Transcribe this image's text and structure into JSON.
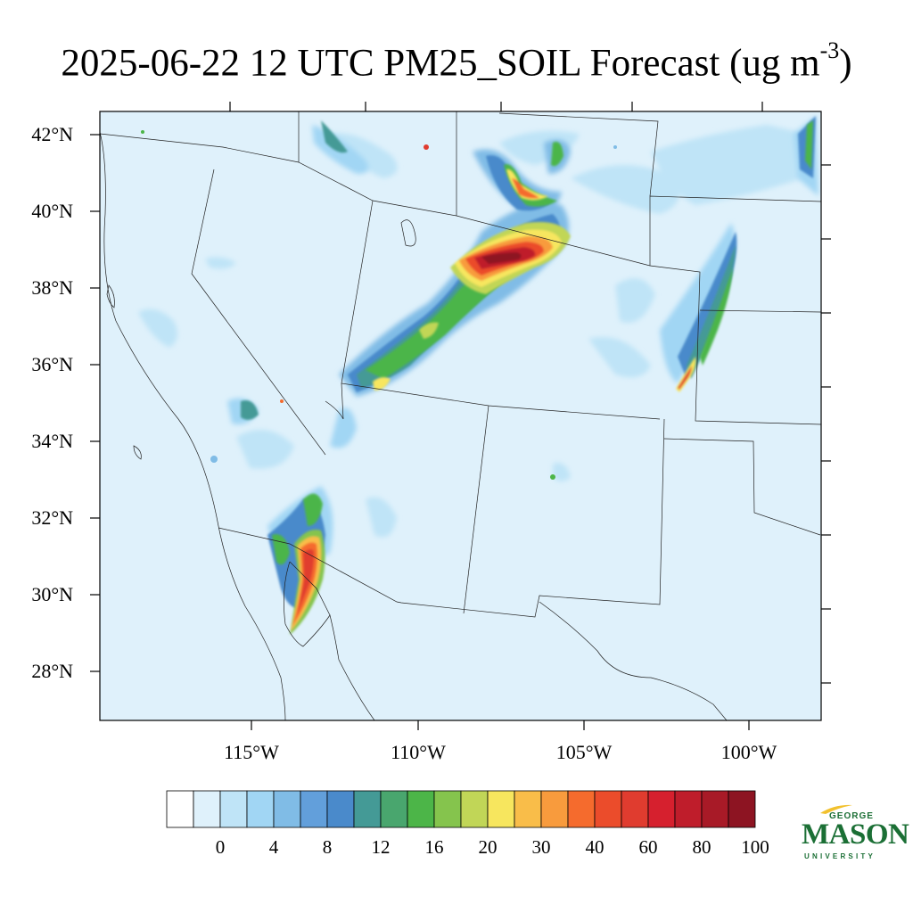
{
  "title": {
    "main": "2025-06-22 12 UTC PM25_SOIL Forecast (ug m",
    "superscript": "-3",
    "close": ")"
  },
  "map": {
    "background_color": "#dff1fb",
    "latitude_labels": [
      "42°N",
      "40°N",
      "38°N",
      "36°N",
      "34°N",
      "32°N",
      "30°N",
      "28°N"
    ],
    "longitude_labels": [
      "115°W",
      "110°W",
      "105°W",
      "100°W"
    ]
  },
  "colorbar": {
    "colors": [
      "#ffffff",
      "#dff1fb",
      "#bfe4f7",
      "#a1d6f4",
      "#80bce6",
      "#629fdb",
      "#4a8acb",
      "#449a96",
      "#49a66e",
      "#4cb548",
      "#85c44d",
      "#c1d657",
      "#f7e65e",
      "#f9bd49",
      "#f89b3d",
      "#f56b2d",
      "#eb4c2b",
      "#e03c2f",
      "#d6202e",
      "#bf1d2b",
      "#a81a27",
      "#8d1422"
    ],
    "labels": [
      "0",
      "4",
      "8",
      "12",
      "16",
      "20",
      "30",
      "40",
      "60",
      "80",
      "100"
    ]
  },
  "logo": {
    "top_text": "GEORGE",
    "main_text": "MASON",
    "bottom_text": "UNIVERSITY",
    "color": "#1b6f35"
  }
}
